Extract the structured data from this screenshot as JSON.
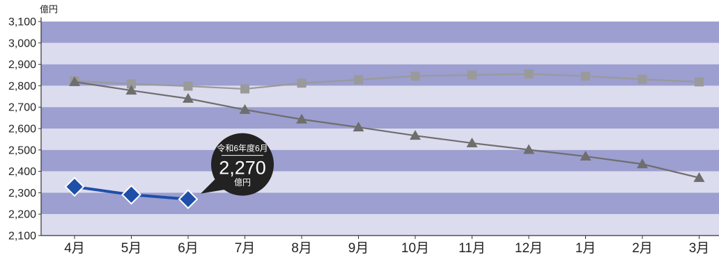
{
  "chart_data": {
    "type": "line",
    "unit_label": "億円",
    "categories": [
      "4月",
      "5月",
      "6月",
      "7月",
      "8月",
      "9月",
      "10月",
      "11月",
      "12月",
      "1月",
      "2月",
      "3月"
    ],
    "yticks": [
      "2,100",
      "2,200",
      "2,300",
      "2,400",
      "2,500",
      "2,600",
      "2,700",
      "2,800",
      "2,900",
      "3,000",
      "3,100"
    ],
    "ylim": [
      2100,
      3100
    ],
    "grid": "horizontal alternating bands",
    "series": [
      {
        "marker": "square",
        "color": "#9a9a9a",
        "values": [
          2822,
          2808,
          2798,
          2785,
          2812,
          2828,
          2845,
          2850,
          2855,
          2845,
          2830,
          2818
        ]
      },
      {
        "marker": "triangle",
        "color": "#6e6e6e",
        "values": [
          2818,
          2778,
          2740,
          2688,
          2643,
          2606,
          2567,
          2532,
          2501,
          2470,
          2434,
          2370
        ]
      },
      {
        "marker": "diamond",
        "color": "#1f4fa8",
        "values": [
          2328,
          2291,
          2270,
          null,
          null,
          null,
          null,
          null,
          null,
          null,
          null,
          null
        ]
      }
    ],
    "annotation": {
      "label": "令和6年度6月",
      "value": "2,270",
      "unit": "億円"
    },
    "colors": {
      "band_dark": "#9c9fcf",
      "band_light": "#dcdcef",
      "axis": "#333333",
      "callout_bg": "#222222"
    }
  }
}
